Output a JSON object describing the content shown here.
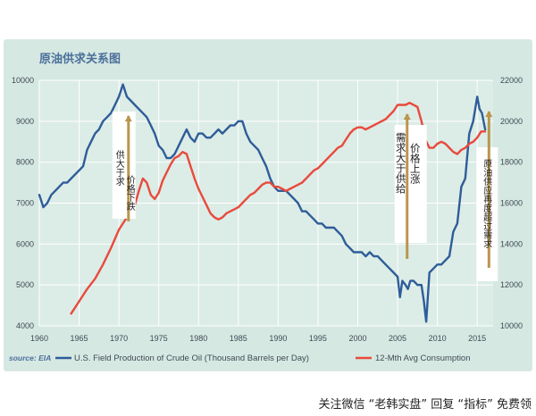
{
  "chart_data": {
    "type": "line",
    "title": "原油供求关系图",
    "source": "source: EIA",
    "x_ticks": [
      "1960",
      "1965",
      "1970",
      "1975",
      "1980",
      "1985",
      "1990",
      "1995",
      "2000",
      "2005",
      "2010",
      "2015"
    ],
    "xlim": [
      1960,
      2017
    ],
    "y_left_ticks": [
      "4000",
      "5000",
      "6000",
      "7000",
      "8000",
      "9000",
      "10000"
    ],
    "y_left_range": [
      4000,
      10000
    ],
    "y_right_ticks": [
      "10000",
      "12000",
      "14000",
      "16000",
      "18000",
      "20000",
      "22000"
    ],
    "y_right_range": [
      10000,
      22000
    ],
    "grid": true,
    "legend_position": "bottom",
    "series": [
      {
        "name": "U.S. Field Production of Crude Oil (Thousand Barrels per Day)",
        "axis": "left",
        "color": "#2e5d99",
        "x": [
          1960,
          1960.5,
          1961,
          1961.5,
          1962,
          1962.5,
          1963,
          1963.5,
          1964,
          1964.5,
          1965,
          1965.5,
          1966,
          1966.5,
          1967,
          1967.5,
          1968,
          1968.5,
          1969,
          1969.5,
          1970,
          1970.5,
          1971,
          1971.5,
          1972,
          1972.5,
          1973,
          1973.5,
          1974,
          1974.5,
          1975,
          1975.5,
          1976,
          1976.5,
          1977,
          1977.5,
          1978,
          1978.5,
          1979,
          1979.5,
          1980,
          1980.5,
          1981,
          1981.5,
          1982,
          1982.5,
          1983,
          1983.5,
          1984,
          1984.5,
          1985,
          1985.5,
          1986,
          1986.5,
          1987,
          1987.5,
          1988,
          1988.5,
          1989,
          1989.5,
          1990,
          1990.5,
          1991,
          1991.5,
          1992,
          1992.5,
          1993,
          1993.5,
          1994,
          1994.5,
          1995,
          1995.5,
          1996,
          1996.5,
          1997,
          1997.5,
          1998,
          1998.5,
          1999,
          1999.5,
          2000,
          2000.5,
          2001,
          2001.5,
          2002,
          2002.5,
          2003,
          2003.5,
          2004,
          2004.5,
          2005,
          2005.3,
          2005.6,
          2006,
          2006.3,
          2006.6,
          2007,
          2007.5,
          2008,
          2008.3,
          2008.6,
          2009,
          2009.5,
          2010,
          2010.5,
          2011,
          2011.5,
          2012,
          2012.5,
          2013,
          2013.5,
          2014,
          2014.5,
          2015,
          2015.3,
          2015.6,
          2016
        ],
        "values": [
          7200,
          6900,
          7000,
          7200,
          7300,
          7400,
          7500,
          7500,
          7600,
          7700,
          7800,
          7900,
          8300,
          8500,
          8700,
          8800,
          9000,
          9100,
          9200,
          9400,
          9600,
          9900,
          9600,
          9500,
          9400,
          9300,
          9200,
          9100,
          8900,
          8700,
          8400,
          8300,
          8100,
          8100,
          8200,
          8400,
          8600,
          8800,
          8600,
          8500,
          8700,
          8700,
          8600,
          8600,
          8700,
          8800,
          8700,
          8800,
          8900,
          8900,
          9000,
          9000,
          8700,
          8500,
          8400,
          8300,
          8100,
          7900,
          7600,
          7400,
          7300,
          7300,
          7300,
          7200,
          7100,
          7000,
          6800,
          6800,
          6700,
          6600,
          6500,
          6500,
          6400,
          6400,
          6400,
          6300,
          6200,
          6000,
          5900,
          5800,
          5800,
          5800,
          5700,
          5800,
          5700,
          5700,
          5600,
          5500,
          5400,
          5300,
          5200,
          4700,
          5100,
          5000,
          4900,
          5100,
          5100,
          5000,
          5000,
          4600,
          4100,
          5300,
          5400,
          5500,
          5500,
          5600,
          5700,
          6300,
          6500,
          7400,
          7600,
          8700,
          9000,
          9600,
          9300,
          9200,
          8800
        ]
      },
      {
        "name": "12-Mth Avg Consumption",
        "axis": "right",
        "color": "#e84a3d",
        "x": [
          1964,
          1965,
          1966,
          1967,
          1968,
          1969,
          1970,
          1971,
          1972,
          1972.5,
          1973,
          1973.5,
          1974,
          1974.5,
          1975,
          1975.5,
          1976,
          1976.5,
          1977,
          1977.5,
          1978,
          1978.5,
          1979,
          1979.5,
          1980,
          1980.5,
          1981,
          1981.5,
          1982,
          1982.5,
          1983,
          1983.5,
          1984,
          1984.5,
          1985,
          1985.5,
          1986,
          1986.5,
          1987,
          1987.5,
          1988,
          1988.5,
          1989,
          1989.5,
          1990,
          1990.5,
          1991,
          1991.5,
          1992,
          1992.5,
          1993,
          1993.5,
          1994,
          1994.5,
          1995,
          1995.5,
          1996,
          1996.5,
          1997,
          1997.5,
          1998,
          1998.5,
          1999,
          1999.5,
          2000,
          2000.5,
          2001,
          2001.5,
          2002,
          2002.5,
          2003,
          2003.5,
          2004,
          2004.5,
          2005,
          2005.5,
          2006,
          2006.5,
          2007,
          2007.5,
          2008,
          2008.5,
          2009,
          2009.5,
          2010,
          2010.5,
          2011,
          2011.5,
          2012,
          2012.5,
          2013,
          2013.5,
          2014,
          2014.5,
          2015,
          2015.5,
          2016
        ],
        "values": [
          10600,
          11200,
          11800,
          12300,
          13000,
          13800,
          14700,
          15300,
          15900,
          16600,
          17200,
          17000,
          16400,
          16200,
          16500,
          17100,
          17500,
          17900,
          18200,
          18300,
          18500,
          18400,
          17800,
          17200,
          16700,
          16300,
          15900,
          15500,
          15300,
          15200,
          15300,
          15500,
          15600,
          15700,
          15800,
          16000,
          16200,
          16400,
          16500,
          16700,
          16900,
          17000,
          17000,
          16800,
          16800,
          16700,
          16600,
          16700,
          16800,
          16900,
          17000,
          17200,
          17400,
          17600,
          17700,
          17900,
          18100,
          18300,
          18500,
          18700,
          18800,
          19100,
          19400,
          19600,
          19700,
          19700,
          19600,
          19700,
          19800,
          19900,
          20000,
          20100,
          20300,
          20500,
          20800,
          20800,
          20800,
          20900,
          20800,
          20700,
          20000,
          19100,
          18700,
          18700,
          18900,
          19000,
          18900,
          18700,
          18500,
          18400,
          18600,
          18700,
          18900,
          19000,
          19200,
          19500,
          19500
        ]
      }
    ],
    "annotations": [
      {
        "text": "供大于求",
        "text2": "价格下跌"
      },
      {
        "text": "需求大于供给",
        "text2": "价格上涨"
      },
      {
        "text": "原油供应再度超过需求"
      }
    ]
  },
  "footer": {
    "label": "关注微信 “老韩实盘” 回复 “指标” 免费领"
  },
  "colors": {
    "plot_background": "#dcece6",
    "frame_background": "#d6e8e2",
    "grid": "#ffffff",
    "annotation_arrow": "#b9964c"
  }
}
